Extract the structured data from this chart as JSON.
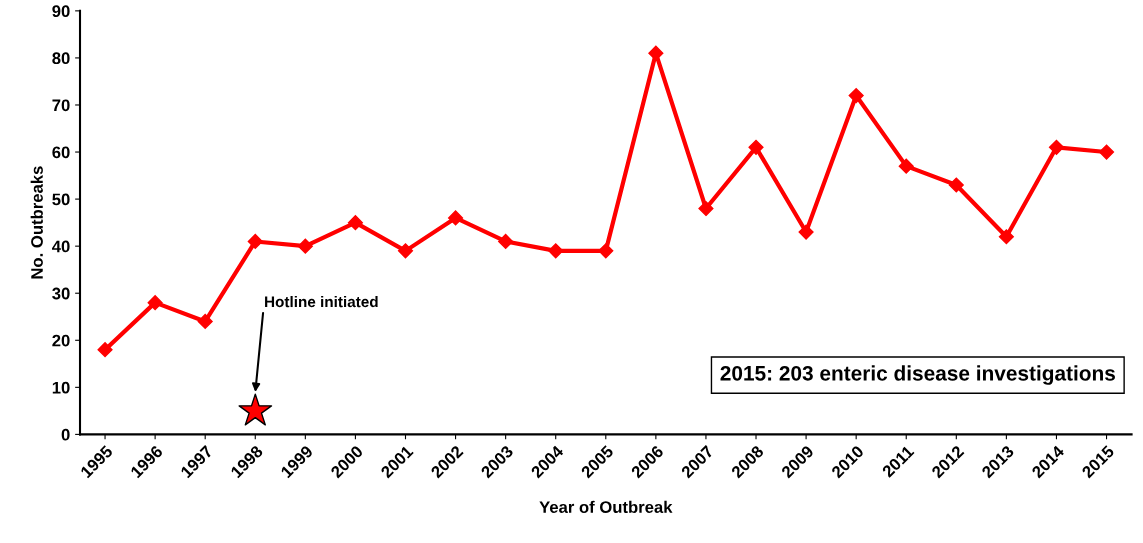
{
  "chart_data": {
    "type": "line",
    "xlabel": "Year of Outbreak",
    "ylabel": "No. Outbreaks",
    "categories": [
      "1995",
      "1996",
      "1997",
      "1998",
      "1999",
      "2000",
      "2001",
      "2002",
      "2003",
      "2004",
      "2005",
      "2006",
      "2007",
      "2008",
      "2009",
      "2010",
      "2011",
      "2012",
      "2013",
      "2014",
      "2015"
    ],
    "series": [
      {
        "color": "#ff0000",
        "values": [
          18,
          28,
          24,
          41,
          40,
          45,
          39,
          46,
          41,
          39,
          39,
          81,
          48,
          61,
          43,
          72,
          57,
          53,
          42,
          61,
          60
        ]
      }
    ],
    "ylim": [
      0,
      90
    ],
    "yticks": [
      0,
      10,
      20,
      30,
      40,
      50,
      60,
      70,
      80,
      90
    ],
    "grid": false,
    "legend": false,
    "marker": "diamond",
    "line_style": "solid",
    "annotations": [
      "Hotline initiated",
      "2015: 203 enteric disease investigations"
    ]
  }
}
